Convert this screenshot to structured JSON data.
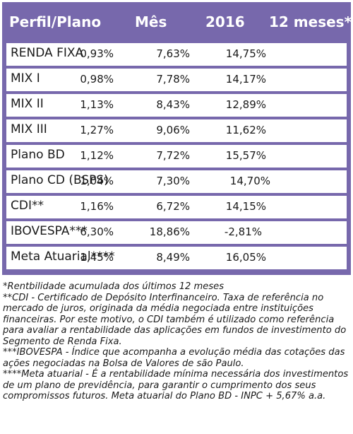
{
  "table": {
    "headers": [
      "Perfil/Plano",
      "Mês",
      "2016",
      "12 meses*"
    ],
    "rows": [
      {
        "name": "RENDA FIXA",
        "mes": "0,93%",
        "y2016": "7,63%",
        "m12": "14,75%"
      },
      {
        "name": "MIX I",
        "mes": "0,98%",
        "y2016": "7,78%",
        "m12": "14,17%"
      },
      {
        "name": "MIX II",
        "mes": "1,13%",
        "y2016": "8,43%",
        "m12": "12,89%"
      },
      {
        "name": "MIX III",
        "mes": "1,27%",
        "y2016": "9,06%",
        "m12": "11,62%"
      },
      {
        "name": "Plano BD",
        "mes": "1,12%",
        "y2016": "7,72%",
        "m12": "15,57%"
      },
      {
        "name": "Plano CD (BSPS)",
        "mes": "1,04%",
        "y2016": "7,30%",
        "m12": "14,70%"
      },
      {
        "name": "CDI**",
        "mes": "1,16%",
        "y2016": "6,72%",
        "m12": "14,15%"
      },
      {
        "name": "IBOVESPA***",
        "mes": "6,30%",
        "y2016": "18,86%",
        "m12": "-2,81%"
      },
      {
        "name": "Meta Atuarial****",
        "mes": "1,45%",
        "y2016": "8,49%",
        "m12": "16,05%"
      }
    ]
  },
  "notes": [
    "*Rentbilidade acumulada dos últimos 12 meses",
    "**CDI - Certificado de Depósito Interfinanceiro. Taxa de referência no mercado de juros, originada da média negociada entre instituições financeiras. Por este motivo, o CDI também é utilizado como referência para avaliar a rentabilidade das aplicações em fundos de investimento do Segmento de Renda Fixa.",
    "***IBOVESPA - Índice que acompanha a evolução média das cotações das ações negociadas na Bolsa de Valores de são Paulo.",
    "****Meta atuarial - É a rentabilidade mínima necessária dos investimentos de um plano de previdência, para garantir o cumprimento dos seus compromissos futuros. Meta atuarial do Plano BD - INPC + 5,67% a.a."
  ]
}
